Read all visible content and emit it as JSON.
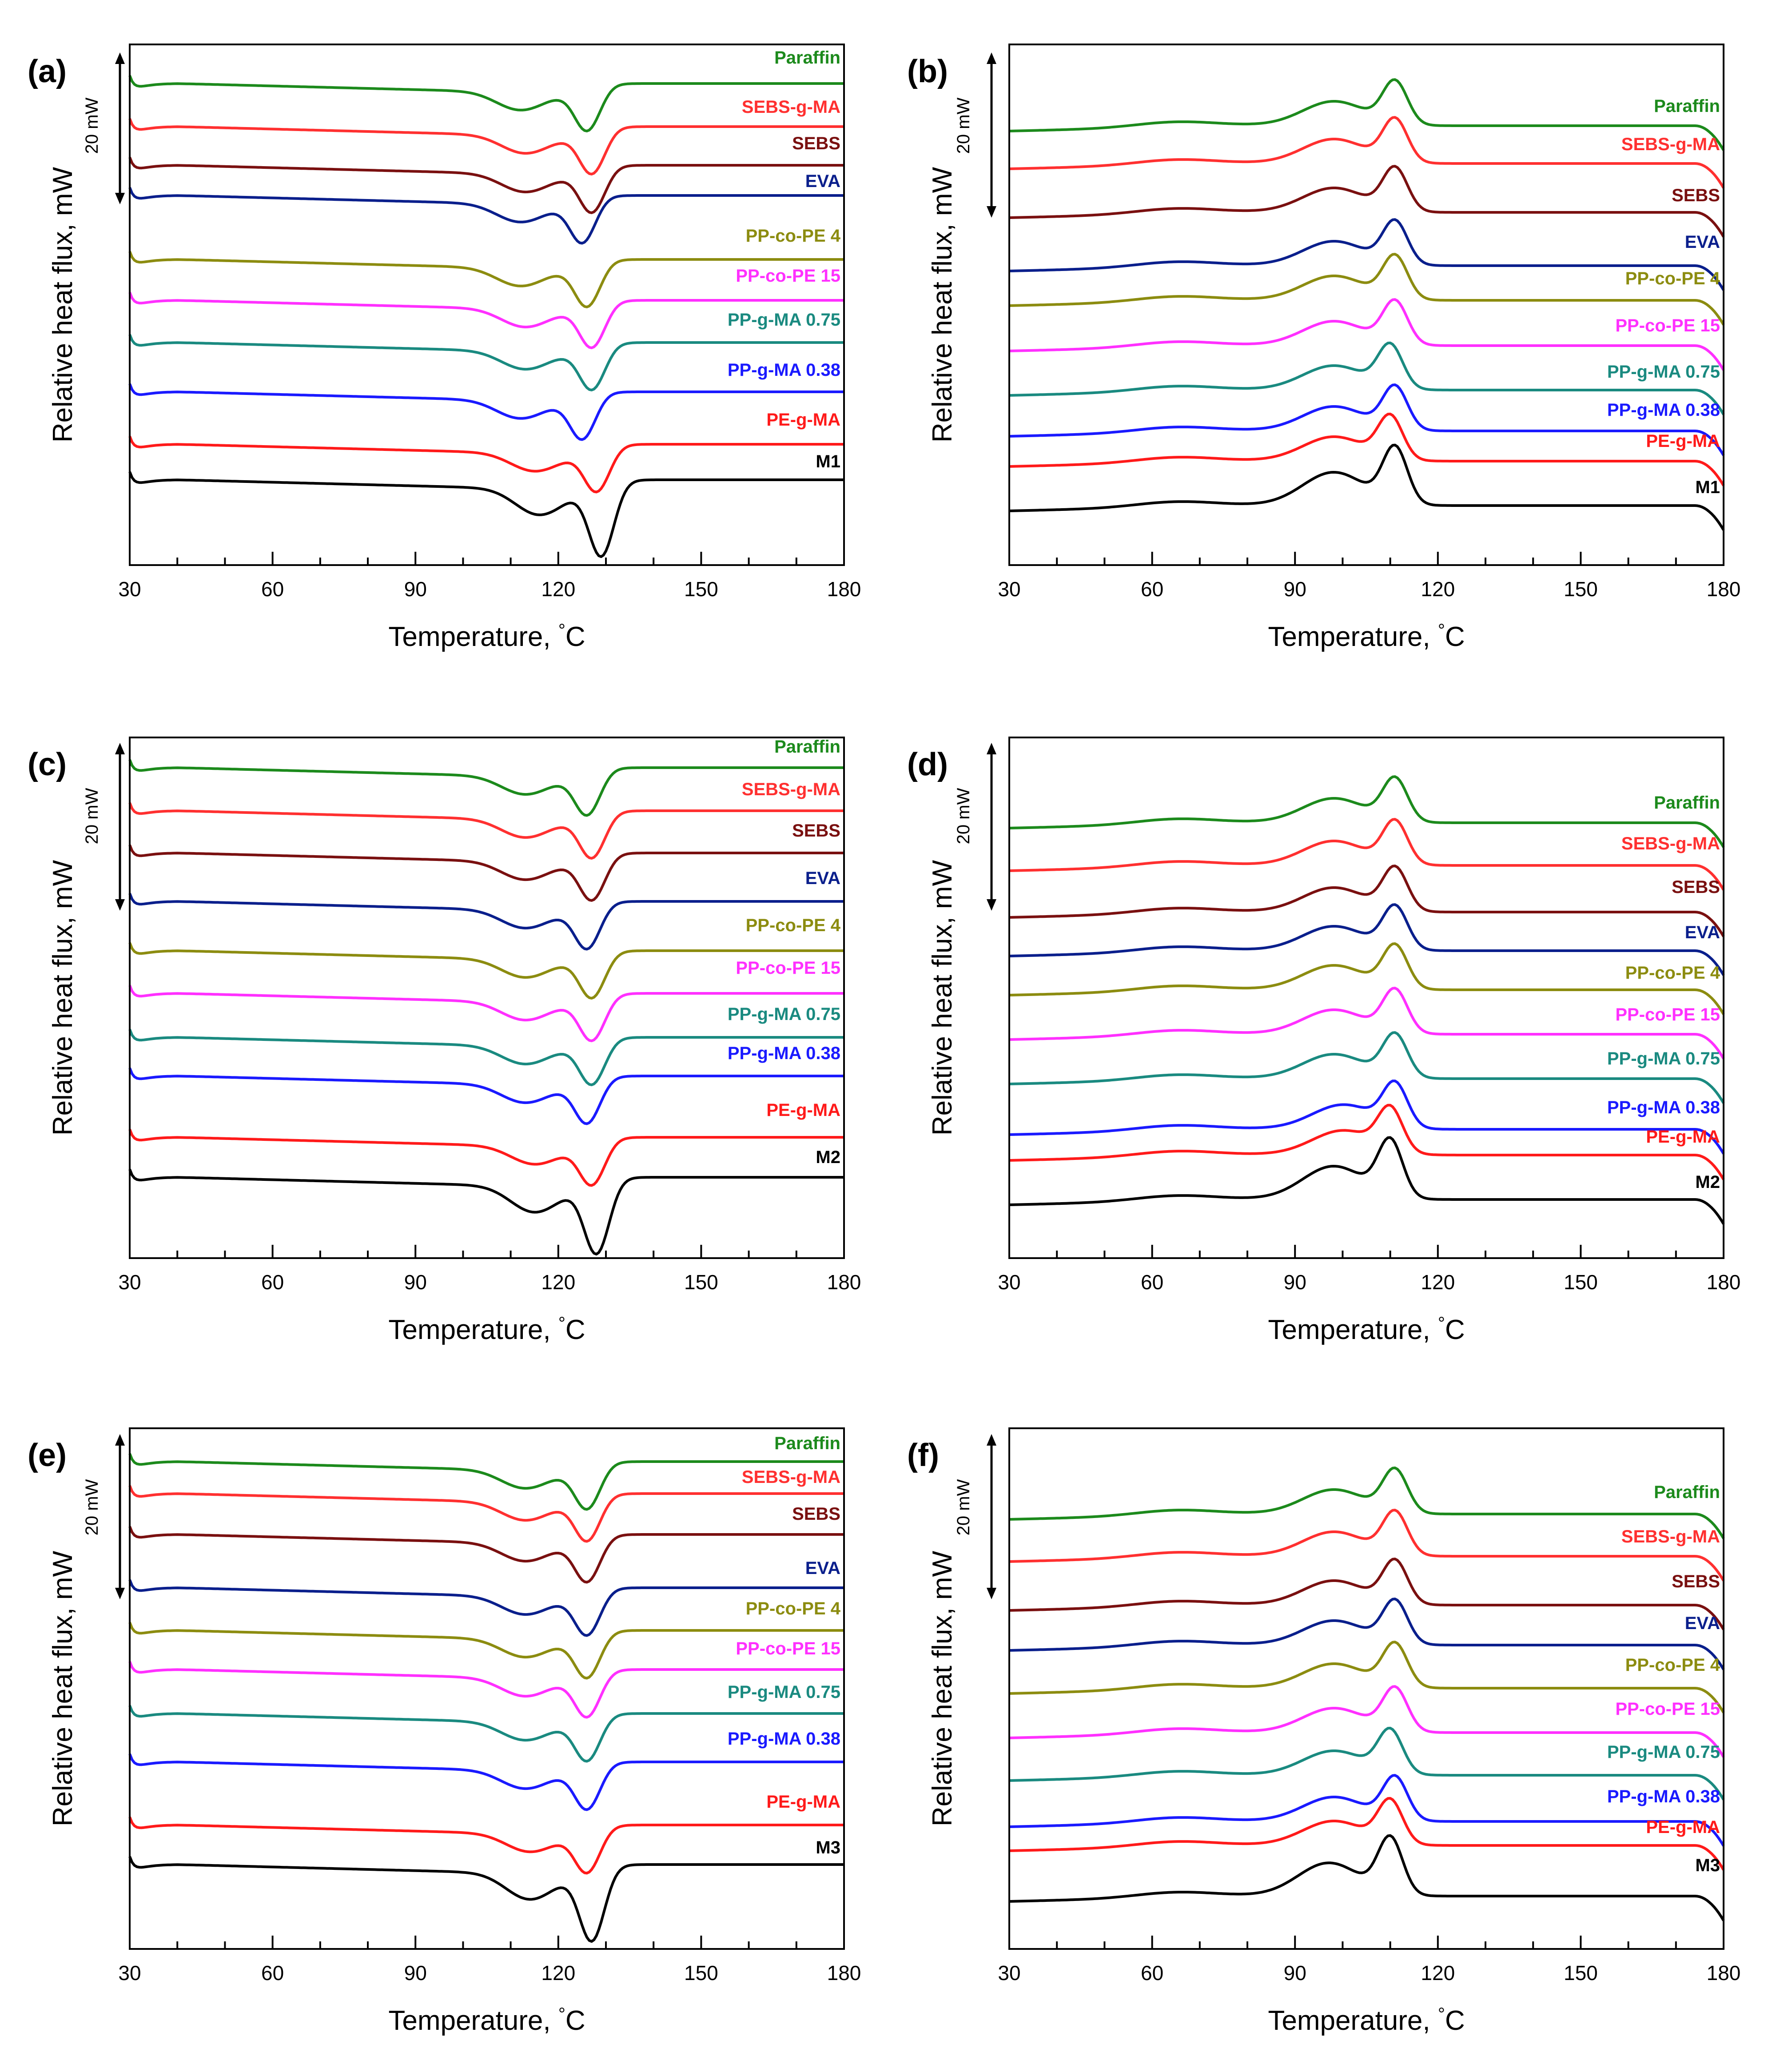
{
  "figure": {
    "description_units": "temperature in degC, heat flux in relative mW (offset curves)",
    "colors": {
      "Paraffin": "#1c8a1c",
      "SEBS-g-MA": "#ff3030",
      "SEBS": "#7a1010",
      "EVA": "#0a1f8c",
      "PP-co-PE 4": "#8c8c10",
      "PP-co-PE 15": "#ff30ff",
      "PP-g-MA 0.75": "#1a8a80",
      "PP-g-MA 0.38": "#1a1aff",
      "PE-g-MA": "#ff1a1a",
      "M": "#000000"
    }
  },
  "chart_data": [
    {
      "panel": "(a)",
      "type": "line",
      "kind": "heating",
      "xlabel": "Temperature,",
      "xunit": "°C",
      "ylabel": "Relative heat flux, mW",
      "xlim": [
        30,
        180
      ],
      "xticks": [
        "30",
        "60",
        "90",
        "120",
        "150",
        "180"
      ],
      "scalebar": "20 mW",
      "scalebar_value_mW": 20,
      "series": [
        {
          "name": "Paraffin",
          "offset": 0.6,
          "min1": 112,
          "min2": 126
        },
        {
          "name": "SEBS-g-MA",
          "offset": 0.6,
          "min1": 113,
          "min2": 127
        },
        {
          "name": "SEBS",
          "offset": 0.6,
          "min1": 113,
          "min2": 127
        },
        {
          "name": "EVA",
          "offset": 0.6,
          "min1": 112,
          "min2": 125
        },
        {
          "name": "PP-co-PE 4",
          "offset": 0.6,
          "min1": 112,
          "min2": 126
        },
        {
          "name": "PP-co-PE 15",
          "offset": 0.6,
          "min1": 113,
          "min2": 127
        },
        {
          "name": "PP-g-MA 0.75",
          "offset": 0.6,
          "min1": 113,
          "min2": 127
        },
        {
          "name": "PP-g-MA 0.38",
          "offset": 0.6,
          "min1": 112,
          "min2": 125
        },
        {
          "name": "PE-g-MA",
          "offset": 0.6,
          "min1": 115,
          "min2": 128
        },
        {
          "name": "M1",
          "offset": 0.6,
          "min1": 116,
          "min2": 129
        }
      ]
    },
    {
      "panel": "(b)",
      "type": "line",
      "kind": "cooling",
      "xlabel": "Temperature,",
      "xunit": "°C",
      "ylabel": "Relative heat flux, mW",
      "xlim": [
        30,
        180
      ],
      "xticks": [
        "30",
        "60",
        "90",
        "120",
        "150",
        "180"
      ],
      "scalebar": "20 mW",
      "scalebar_value_mW": 20,
      "series": [
        {
          "name": "Paraffin",
          "peak1": 98,
          "peak2": 111
        },
        {
          "name": "SEBS-g-MA",
          "peak1": 98,
          "peak2": 111
        },
        {
          "name": "SEBS",
          "peak1": 98,
          "peak2": 111
        },
        {
          "name": "EVA",
          "peak1": 98,
          "peak2": 111
        },
        {
          "name": "PP-co-PE 4",
          "peak1": 98,
          "peak2": 111
        },
        {
          "name": "PP-co-PE 15",
          "peak1": 98,
          "peak2": 111
        },
        {
          "name": "PP-g-MA 0.75",
          "peak1": 98,
          "peak2": 110
        },
        {
          "name": "PP-g-MA 0.38",
          "peak1": 98,
          "peak2": 111
        },
        {
          "name": "PE-g-MA",
          "peak1": 98,
          "peak2": 110
        },
        {
          "name": "M1",
          "peak1": 98,
          "peak2": 111
        }
      ]
    },
    {
      "panel": "(c)",
      "type": "line",
      "kind": "heating",
      "xlabel": "Temperature,",
      "xunit": "°C",
      "ylabel": "Relative heat flux, mW",
      "xlim": [
        30,
        180
      ],
      "xticks": [
        "30",
        "60",
        "90",
        "120",
        "150",
        "180"
      ],
      "scalebar": "20 mW",
      "scalebar_value_mW": 20,
      "series": [
        {
          "name": "Paraffin",
          "min1": 113,
          "min2": 126
        },
        {
          "name": "SEBS-g-MA",
          "min1": 113,
          "min2": 127
        },
        {
          "name": "SEBS",
          "min1": 113,
          "min2": 127
        },
        {
          "name": "EVA",
          "min1": 113,
          "min2": 126
        },
        {
          "name": "PP-co-PE 4",
          "min1": 113,
          "min2": 127
        },
        {
          "name": "PP-co-PE 15",
          "min1": 113,
          "min2": 127
        },
        {
          "name": "PP-g-MA 0.75",
          "min1": 113,
          "min2": 127
        },
        {
          "name": "PP-g-MA 0.38",
          "min1": 113,
          "min2": 126
        },
        {
          "name": "PE-g-MA",
          "min1": 115,
          "min2": 127
        },
        {
          "name": "M2",
          "min1": 115,
          "min2": 128
        }
      ]
    },
    {
      "panel": "(d)",
      "type": "line",
      "kind": "cooling",
      "xlabel": "Temperature,",
      "xunit": "°C",
      "ylabel": "Relative heat flux, mW",
      "xlim": [
        30,
        180
      ],
      "xticks": [
        "30",
        "60",
        "90",
        "120",
        "150",
        "180"
      ],
      "scalebar": "20 mW",
      "scalebar_value_mW": 20,
      "series": [
        {
          "name": "Paraffin",
          "peak1": 98,
          "peak2": 111
        },
        {
          "name": "SEBS-g-MA",
          "peak1": 98,
          "peak2": 111
        },
        {
          "name": "SEBS",
          "peak1": 98,
          "peak2": 111
        },
        {
          "name": "EVA",
          "peak1": 98,
          "peak2": 111
        },
        {
          "name": "PP-co-PE 4",
          "peak1": 98,
          "peak2": 111
        },
        {
          "name": "PP-co-PE 15",
          "peak1": 98,
          "peak2": 111
        },
        {
          "name": "PP-g-MA 0.75",
          "peak1": 98,
          "peak2": 111
        },
        {
          "name": "PP-g-MA 0.38",
          "peak1": 100,
          "peak2": 111
        },
        {
          "name": "PE-g-MA",
          "peak1": 100,
          "peak2": 110
        },
        {
          "name": "M2",
          "peak1": 98,
          "peak2": 110
        }
      ]
    },
    {
      "panel": "(e)",
      "type": "line",
      "kind": "heating",
      "xlabel": "Temperature,",
      "xunit": "°C",
      "ylabel": "Relative heat flux, mW",
      "xlim": [
        30,
        180
      ],
      "xticks": [
        "30",
        "60",
        "90",
        "120",
        "150",
        "180"
      ],
      "scalebar": "20 mW",
      "scalebar_value_mW": 20,
      "series": [
        {
          "name": "Paraffin",
          "min1": 113,
          "min2": 126
        },
        {
          "name": "SEBS-g-MA",
          "min1": 113,
          "min2": 126
        },
        {
          "name": "SEBS",
          "min1": 113,
          "min2": 126
        },
        {
          "name": "EVA",
          "min1": 113,
          "min2": 126
        },
        {
          "name": "PP-co-PE 4",
          "min1": 113,
          "min2": 126
        },
        {
          "name": "PP-co-PE 15",
          "min1": 113,
          "min2": 126
        },
        {
          "name": "PP-g-MA 0.75",
          "min1": 113,
          "min2": 126
        },
        {
          "name": "PP-g-MA 0.38",
          "min1": 113,
          "min2": 126
        },
        {
          "name": "PE-g-MA",
          "min1": 114,
          "min2": 126
        },
        {
          "name": "M3",
          "min1": 114,
          "min2": 127
        }
      ]
    },
    {
      "panel": "(f)",
      "type": "line",
      "kind": "cooling",
      "xlabel": "Temperature,",
      "xunit": "°C",
      "ylabel": "Relative heat flux, mW",
      "xlim": [
        30,
        180
      ],
      "xticks": [
        "30",
        "60",
        "90",
        "120",
        "150",
        "180"
      ],
      "scalebar": "20 mW",
      "scalebar_value_mW": 20,
      "series": [
        {
          "name": "Paraffin",
          "peak1": 98,
          "peak2": 111
        },
        {
          "name": "SEBS-g-MA",
          "peak1": 98,
          "peak2": 111
        },
        {
          "name": "SEBS",
          "peak1": 98,
          "peak2": 111
        },
        {
          "name": "EVA",
          "peak1": 98,
          "peak2": 111
        },
        {
          "name": "PP-co-PE 4",
          "peak1": 98,
          "peak2": 111
        },
        {
          "name": "PP-co-PE 15",
          "peak1": 98,
          "peak2": 111
        },
        {
          "name": "PP-g-MA 0.75",
          "peak1": 98,
          "peak2": 110
        },
        {
          "name": "PP-g-MA 0.38",
          "peak1": 98,
          "peak2": 111
        },
        {
          "name": "PE-g-MA",
          "peak1": 98,
          "peak2": 110
        },
        {
          "name": "M3",
          "peak1": 97,
          "peak2": 110
        }
      ]
    }
  ]
}
